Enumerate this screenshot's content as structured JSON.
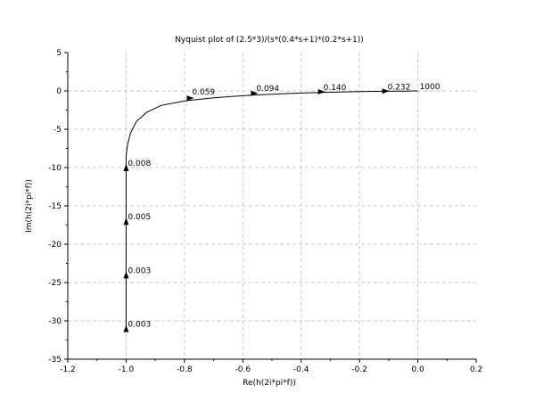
{
  "chart_data": {
    "type": "line",
    "title": "Nyquist plot of (2.5*3)/(s*(0.4*s+1)*(0.2*s+1))",
    "xlabel": "Re(h(2i*pi*f))",
    "ylabel": "Im(h(2i*pi*f))",
    "xlim": [
      -1.2,
      0.2
    ],
    "ylim": [
      -35,
      5
    ],
    "grid": true,
    "x_ticks": [
      "-1.2",
      "-1.0",
      "-0.8",
      "-0.6",
      "-0.4",
      "-0.2",
      "0.0",
      "0.2"
    ],
    "y_ticks": [
      "5",
      "0",
      "-5",
      "-10",
      "-15",
      "-20",
      "-25",
      "-30",
      "-35"
    ],
    "x_tick_values": [
      -1.2,
      -1.0,
      -0.8,
      -0.6,
      -0.4,
      -0.2,
      0.0,
      0.2
    ],
    "y_tick_values": [
      5,
      0,
      -5,
      -10,
      -15,
      -20,
      -25,
      -30,
      -35
    ],
    "series": [
      {
        "x": [
          -1.0,
          -1.0,
          -1.0,
          -1.0,
          -1.0,
          -0.995,
          -0.985,
          -0.965,
          -0.93,
          -0.88,
          -0.8,
          -0.7,
          -0.57,
          -0.45,
          -0.34,
          -0.22,
          -0.12,
          -0.05,
          0.0
        ],
        "y": [
          -31.0,
          -24.0,
          -17.0,
          -10.0,
          -8.5,
          -7.0,
          -5.5,
          -4.0,
          -2.8,
          -1.9,
          -1.3,
          -0.9,
          -0.55,
          -0.35,
          -0.2,
          -0.1,
          -0.05,
          -0.02,
          0.0
        ]
      }
    ],
    "annotations": [
      {
        "text": "0.003",
        "x": -1.0,
        "y": -31.0
      },
      {
        "text": "0.003",
        "x": -1.0,
        "y": -24.0
      },
      {
        "text": "0.005",
        "x": -1.0,
        "y": -17.0
      },
      {
        "text": "0.008",
        "x": -1.0,
        "y": -10.0
      },
      {
        "text": "0.059",
        "x": -0.78,
        "y": -0.7
      },
      {
        "text": "0.094",
        "x": -0.56,
        "y": -0.25
      },
      {
        "text": "0.140",
        "x": -0.33,
        "y": -0.12
      },
      {
        "text": "0.232",
        "x": -0.11,
        "y": -0.03
      },
      {
        "text": "1000",
        "x": 0.0,
        "y": 0.0
      }
    ],
    "arrows": [
      {
        "x": -1.0,
        "y": -31.0,
        "dir": "up"
      },
      {
        "x": -1.0,
        "y": -24.0,
        "dir": "up"
      },
      {
        "x": -1.0,
        "y": -17.0,
        "dir": "up"
      },
      {
        "x": -1.0,
        "y": -10.0,
        "dir": "up"
      },
      {
        "x": -0.78,
        "y": -0.95,
        "dir": "right"
      },
      {
        "x": -0.56,
        "y": -0.3,
        "dir": "right"
      },
      {
        "x": -0.33,
        "y": -0.12,
        "dir": "right"
      },
      {
        "x": -0.11,
        "y": -0.03,
        "dir": "right"
      }
    ]
  }
}
